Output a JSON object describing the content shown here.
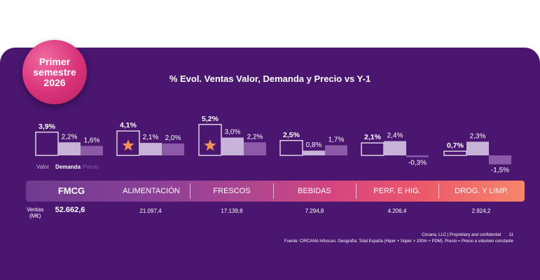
{
  "badge": {
    "line1": "Primer",
    "line2": "semestre",
    "line3": "2026"
  },
  "chart_data": {
    "type": "bar",
    "title": "% Evol. Ventas Valor, Demanda y Precio vs Y-1",
    "legend": [
      "Valor",
      "Demanda",
      "Precio"
    ],
    "categories": [
      "FMCG",
      "ALIMENTACIÓN",
      "FRESCOS",
      "BEBIDAS",
      "PERF. E HIG.",
      "DROG. Y LIMP."
    ],
    "series": [
      {
        "name": "Valor",
        "values": [
          3.9,
          4.1,
          5.2,
          2.5,
          2.1,
          0.7
        ],
        "labels": [
          "3,9%",
          "4,1%",
          "5,2%",
          "2,5%",
          "2,1%",
          "0,7%"
        ]
      },
      {
        "name": "Demanda",
        "values": [
          2.2,
          2.1,
          3.0,
          0.8,
          2.4,
          2.3
        ],
        "labels": [
          "2,2%",
          "2,1%",
          "3,0%",
          "0,8%",
          "2,4%",
          "2,3%"
        ]
      },
      {
        "name": "Precio",
        "values": [
          1.6,
          2.0,
          2.2,
          1.7,
          -0.3,
          -1.5
        ],
        "labels": [
          "1,6%",
          "2,0%",
          "2,2%",
          "1,7%",
          "-0,3%",
          "-1,5%"
        ]
      }
    ],
    "highlighted": [
      "ALIMENTACIÓN",
      "FRESCOS"
    ],
    "colors": {
      "valor": "#4a1670",
      "demanda": "#c9b4d9",
      "precio": "#8c5aa8",
      "star": "#f0925a"
    }
  },
  "sales": {
    "label_line1": "Ventas",
    "label_line2": "(M€)",
    "values": [
      "52.662,6",
      "21.097,4",
      "17.139,8",
      "7.294,8",
      "4.206,4",
      "2.924,2"
    ]
  },
  "footer": {
    "credit": "Circana, LLC | Proprietary and confidential",
    "page": "11",
    "source": "Fuente: CIRCANA Infoscan. Geografía: Total España (Hiper + Súper > 100m + PDM). Precio = Precio a volumen constante"
  }
}
